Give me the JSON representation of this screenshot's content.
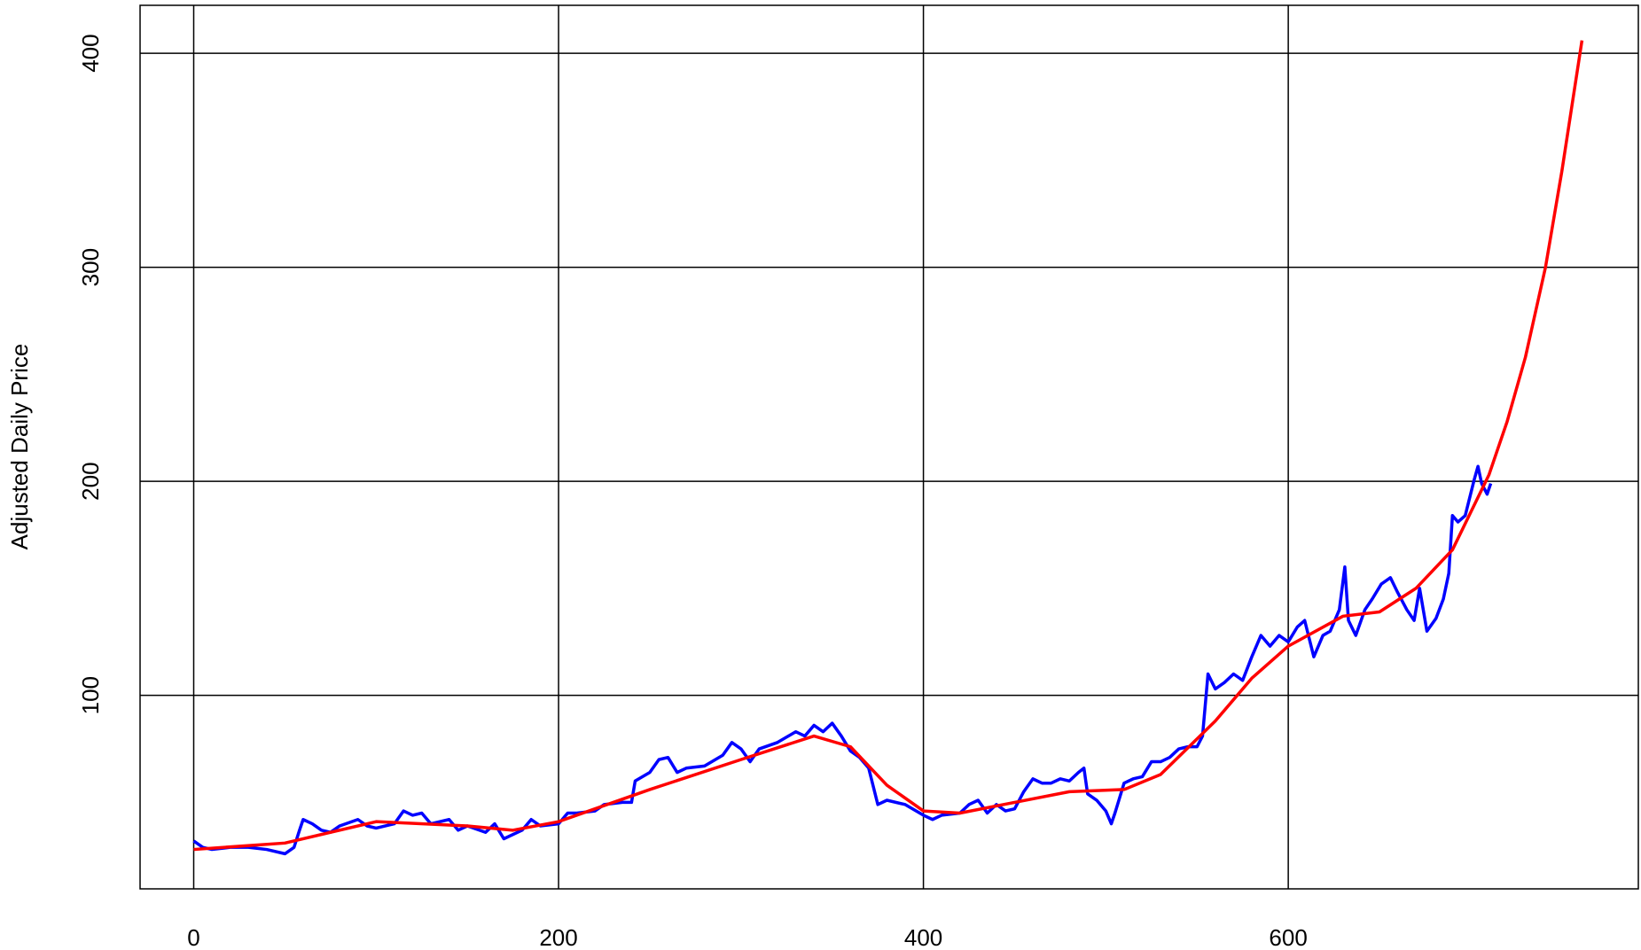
{
  "chart_data": {
    "type": "line",
    "y_label": "Adjusted Daily Price",
    "xlim": [
      -29.4,
      791.9
    ],
    "ylim": [
      9.6,
      422.4
    ],
    "xticks": [
      0,
      200,
      400,
      600
    ],
    "yticks": [
      100,
      200,
      300,
      400
    ],
    "grid": true,
    "series": [
      {
        "color": "#0000ff",
        "x": [
          0,
          5,
          10,
          20,
          30,
          40,
          50,
          55,
          58,
          60,
          65,
          70,
          75,
          80,
          90,
          95,
          100,
          110,
          115,
          120,
          125,
          130,
          140,
          145,
          150,
          160,
          165,
          170,
          180,
          185,
          190,
          200,
          205,
          210,
          220,
          225,
          235,
          240,
          242,
          250,
          255,
          260,
          265,
          270,
          280,
          290,
          295,
          300,
          305,
          310,
          320,
          330,
          335,
          340,
          345,
          350,
          355,
          360,
          365,
          370,
          375,
          380,
          390,
          400,
          405,
          410,
          420,
          425,
          430,
          435,
          440,
          445,
          450,
          455,
          460,
          465,
          470,
          475,
          480,
          485,
          488,
          490,
          495,
          500,
          503,
          505,
          510,
          515,
          520,
          525,
          530,
          535,
          540,
          545,
          550,
          553,
          556,
          560,
          565,
          570,
          575,
          580,
          585,
          590,
          595,
          600,
          605,
          609,
          614,
          619,
          623,
          628,
          631,
          633,
          637,
          642,
          646,
          651,
          656,
          660,
          665,
          669,
          672,
          676,
          681,
          685,
          688,
          690,
          693,
          697,
          702,
          704,
          706,
          709,
          711
        ],
        "values": [
          32,
          29,
          28,
          29,
          29,
          28,
          26,
          29,
          37,
          42,
          40,
          37,
          36,
          39,
          42,
          39,
          38,
          40,
          46,
          44,
          45,
          40,
          42,
          37,
          39,
          36,
          40,
          33,
          37,
          42,
          39,
          40,
          45,
          45,
          46,
          49,
          50,
          50,
          60,
          64,
          70,
          71,
          64,
          66,
          67,
          72,
          78,
          75,
          69,
          75,
          78,
          83,
          81,
          86,
          83,
          87,
          81,
          74,
          71,
          66,
          49,
          51,
          49,
          44,
          42,
          44,
          45,
          49,
          51,
          45,
          49,
          46,
          47,
          55,
          61,
          59,
          59,
          61,
          60,
          64,
          66,
          54,
          51,
          46,
          40,
          45,
          59,
          61,
          62,
          69,
          69,
          71,
          75,
          76,
          76,
          81,
          110,
          103,
          106,
          110,
          107,
          118,
          128,
          123,
          128,
          125,
          132,
          135,
          118,
          128,
          130,
          140,
          160,
          135,
          128,
          140,
          145,
          152,
          155,
          148,
          140,
          135,
          150,
          130,
          136,
          145,
          157,
          184,
          181,
          184,
          201,
          207,
          199,
          194,
          199
        ]
      },
      {
        "color": "#ff0000",
        "x": [
          0,
          50,
          100,
          150,
          175,
          200,
          250,
          300,
          340,
          360,
          380,
          400,
          420,
          450,
          480,
          510,
          530,
          560,
          580,
          600,
          630,
          650,
          670,
          690,
          710,
          720,
          730,
          741,
          750,
          761
        ],
        "values": [
          28,
          31,
          41,
          39,
          37,
          41,
          56,
          70,
          81,
          76,
          58,
          46,
          45,
          50,
          55,
          56,
          63,
          88,
          108,
          123,
          137,
          139,
          150,
          168,
          203,
          228,
          258,
          300,
          345,
          406
        ]
      }
    ]
  }
}
